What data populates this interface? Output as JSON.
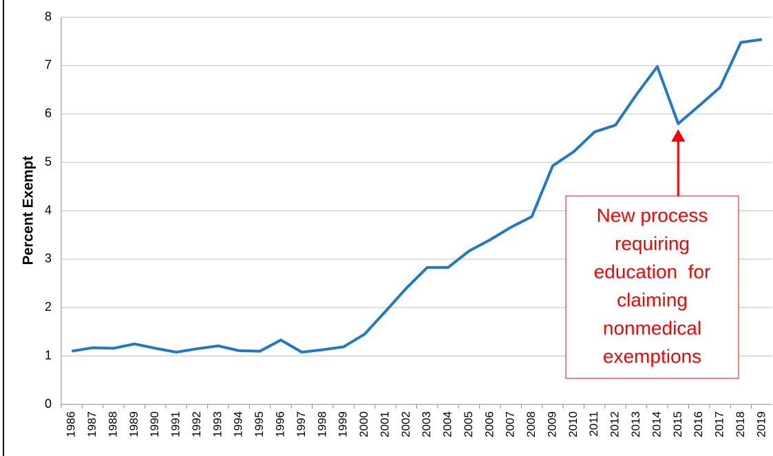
{
  "chart_data": {
    "type": "line",
    "y_label": "Percent Exempt",
    "categories": [
      "1986",
      "1987",
      "1988",
      "1989",
      "1990",
      "1991",
      "1992",
      "1993",
      "1994",
      "1995",
      "1996",
      "1997",
      "1998",
      "1999",
      "2000",
      "2001",
      "2002",
      "2003",
      "2004",
      "2005",
      "2006",
      "2007",
      "2008",
      "2009",
      "2010",
      "2011",
      "2012",
      "2013",
      "2014",
      "2015",
      "2016",
      "2017",
      "2018",
      "2019"
    ],
    "series": [
      {
        "name": "Percent Exempt",
        "color": "#1f78c8",
        "values": [
          1.1,
          1.17,
          1.16,
          1.25,
          1.16,
          1.08,
          1.15,
          1.21,
          1.11,
          1.1,
          1.33,
          1.08,
          1.13,
          1.19,
          1.45,
          1.92,
          2.4,
          2.83,
          2.83,
          3.17,
          3.4,
          3.66,
          3.88,
          4.93,
          5.22,
          5.63,
          5.77,
          6.4,
          6.98,
          5.8,
          6.17,
          6.55,
          7.48,
          7.54
        ]
      }
    ],
    "ylim": [
      0,
      8
    ],
    "yticks": [
      0,
      1,
      2,
      3,
      4,
      5,
      6,
      7,
      8
    ],
    "grid": true,
    "annotation": {
      "lines": [
        "New process",
        "requiring",
        "education  for",
        "claiming",
        "nonmedical",
        "exemptions"
      ],
      "color": "#ff0000",
      "category_index": 29
    }
  }
}
